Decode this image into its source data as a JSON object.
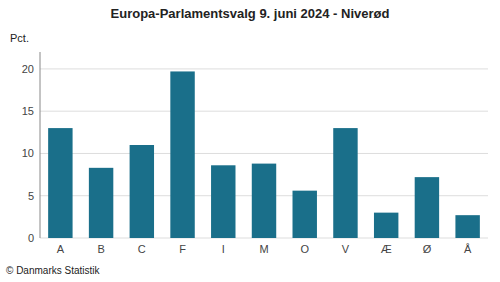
{
  "chart_data": {
    "type": "bar",
    "title": "Europa-Parlamentsvalg 9. juni 2024 - Niverød",
    "ylabel": "Pct.",
    "footer": "© Danmarks Statistik",
    "categories": [
      "A",
      "B",
      "C",
      "F",
      "I",
      "M",
      "O",
      "V",
      "Æ",
      "Ø",
      "Å"
    ],
    "values": [
      13.0,
      8.3,
      11.0,
      19.7,
      8.6,
      8.8,
      5.6,
      13.0,
      3.0,
      7.2,
      2.7
    ],
    "color": "#1a6f8a",
    "ylim": [
      0,
      22
    ],
    "yticks": [
      0,
      5,
      10,
      15,
      20
    ],
    "grid": true
  }
}
